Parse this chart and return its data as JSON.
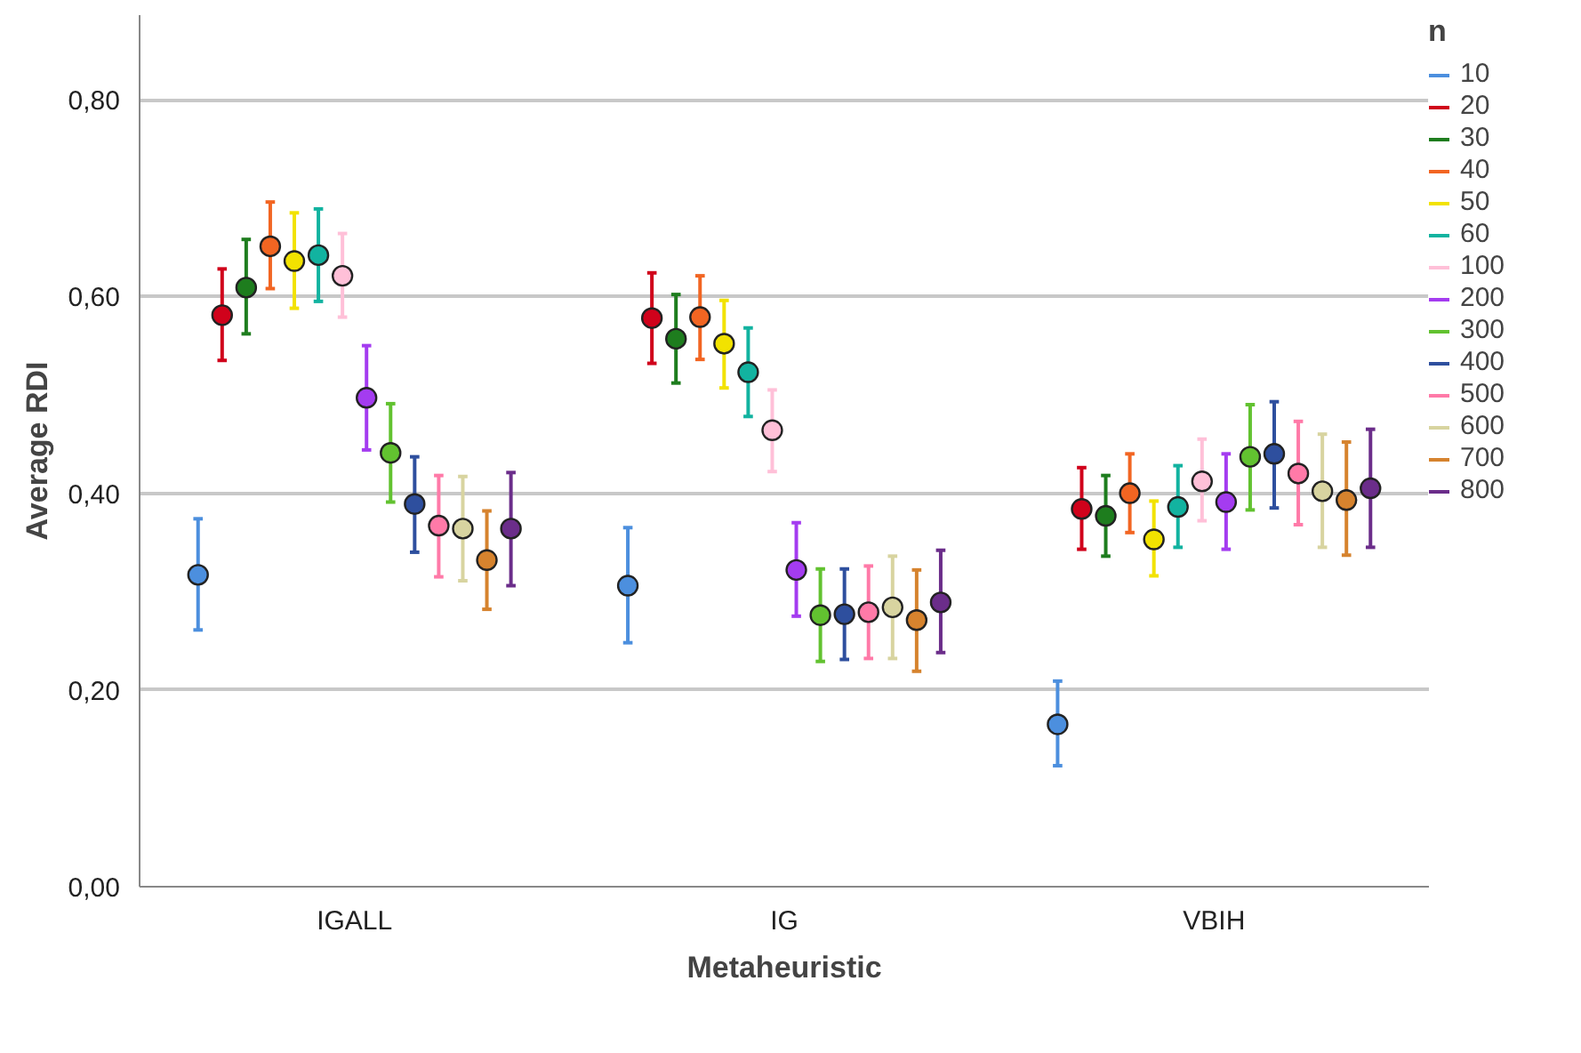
{
  "chart_data": {
    "type": "scatter",
    "xlabel": "Metaheuristic",
    "ylabel": "Average RDI",
    "legend_title": "n",
    "legend": "top right",
    "grid": "y",
    "marker": "circle",
    "categories": [
      "IGALL",
      "IG",
      "VBIH"
    ],
    "ylim": [
      0,
      0.886
    ],
    "yticks": [
      {
        "value": 0,
        "label": "0,00"
      },
      {
        "value": 0.2,
        "label": "0,20"
      },
      {
        "value": 0.4,
        "label": "0,40"
      },
      {
        "value": 0.6,
        "label": "0,60"
      },
      {
        "value": 0.8,
        "label": "0,80"
      }
    ],
    "series": [
      {
        "name": "10",
        "color": "#4c8fde",
        "values": [
          0.317,
          0.306,
          0.165
        ],
        "errors": [
          [
            0.261,
            0.374
          ],
          [
            0.248,
            0.365
          ],
          [
            0.123,
            0.209
          ]
        ]
      },
      {
        "name": "20",
        "color": "#d0021b",
        "values": [
          0.581,
          0.578,
          0.384
        ],
        "errors": [
          [
            0.535,
            0.628
          ],
          [
            0.532,
            0.624
          ],
          [
            0.343,
            0.426
          ]
        ]
      },
      {
        "name": "30",
        "color": "#1e7d1e",
        "values": [
          0.609,
          0.557,
          0.377
        ],
        "errors": [
          [
            0.562,
            0.658
          ],
          [
            0.512,
            0.602
          ],
          [
            0.336,
            0.418
          ]
        ]
      },
      {
        "name": "40",
        "color": "#f26522",
        "values": [
          0.651,
          0.579,
          0.4
        ],
        "errors": [
          [
            0.608,
            0.696
          ],
          [
            0.536,
            0.621
          ],
          [
            0.36,
            0.44
          ]
        ]
      },
      {
        "name": "50",
        "color": "#f2e200",
        "values": [
          0.636,
          0.552,
          0.353
        ],
        "errors": [
          [
            0.588,
            0.685
          ],
          [
            0.507,
            0.596
          ],
          [
            0.316,
            0.392
          ]
        ]
      },
      {
        "name": "60",
        "color": "#12b3a0",
        "values": [
          0.642,
          0.523,
          0.386
        ],
        "errors": [
          [
            0.595,
            0.689
          ],
          [
            0.478,
            0.568
          ],
          [
            0.345,
            0.428
          ]
        ]
      },
      {
        "name": "100",
        "color": "#ffc0d8",
        "values": [
          0.621,
          0.464,
          0.412
        ],
        "errors": [
          [
            0.579,
            0.664
          ],
          [
            0.422,
            0.505
          ],
          [
            0.372,
            0.455
          ]
        ]
      },
      {
        "name": "200",
        "color": "#a43cf0",
        "values": [
          0.497,
          0.322,
          0.391
        ],
        "errors": [
          [
            0.444,
            0.55
          ],
          [
            0.275,
            0.37
          ],
          [
            0.343,
            0.44
          ]
        ]
      },
      {
        "name": "300",
        "color": "#62c230",
        "values": [
          0.441,
          0.276,
          0.437
        ],
        "errors": [
          [
            0.391,
            0.491
          ],
          [
            0.229,
            0.323
          ],
          [
            0.383,
            0.49
          ]
        ]
      },
      {
        "name": "400",
        "color": "#2e4f9e",
        "values": [
          0.389,
          0.277,
          0.44
        ],
        "errors": [
          [
            0.34,
            0.437
          ],
          [
            0.231,
            0.323
          ],
          [
            0.385,
            0.493
          ]
        ]
      },
      {
        "name": "500",
        "color": "#ff7aa8",
        "values": [
          0.367,
          0.279,
          0.42
        ],
        "errors": [
          [
            0.315,
            0.418
          ],
          [
            0.232,
            0.326
          ],
          [
            0.368,
            0.473
          ]
        ]
      },
      {
        "name": "600",
        "color": "#d8d4a0",
        "values": [
          0.364,
          0.284,
          0.402
        ],
        "errors": [
          [
            0.311,
            0.417
          ],
          [
            0.232,
            0.336
          ],
          [
            0.345,
            0.46
          ]
        ]
      },
      {
        "name": "700",
        "color": "#d6832e",
        "values": [
          0.332,
          0.271,
          0.393
        ],
        "errors": [
          [
            0.282,
            0.382
          ],
          [
            0.219,
            0.322
          ],
          [
            0.337,
            0.452
          ]
        ]
      },
      {
        "name": "800",
        "color": "#6b2d8a",
        "values": [
          0.364,
          0.289,
          0.405
        ],
        "errors": [
          [
            0.306,
            0.421
          ],
          [
            0.238,
            0.342
          ],
          [
            0.345,
            0.465
          ]
        ]
      }
    ]
  }
}
